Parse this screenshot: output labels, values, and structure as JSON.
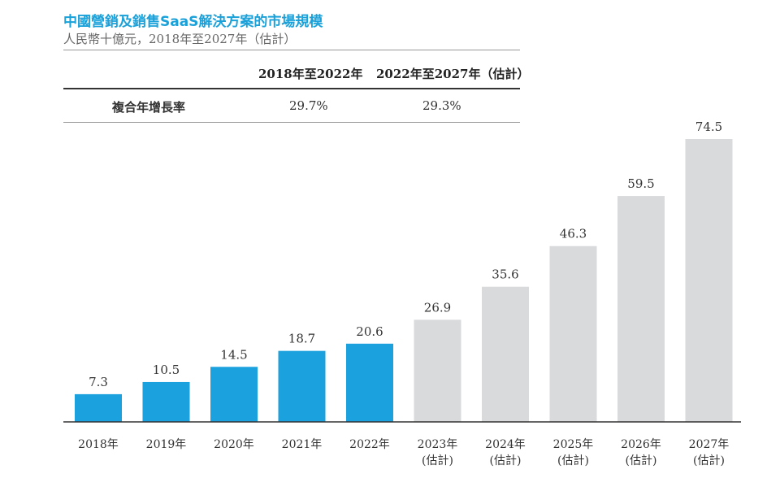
{
  "chart_data": {
    "type": "bar",
    "title": "中國營銷及銷售SaaS解決方案的市場規模",
    "subtitle": "人民幣十億元，2018年至2027年（估計）",
    "categories": [
      "2018年",
      "2019年",
      "2020年",
      "2021年",
      "2022年",
      "2023年\n(估計)",
      "2024年\n(估計)",
      "2025年\n(估計)",
      "2026年\n(估計)",
      "2027年\n(估計)"
    ],
    "values": [
      7.3,
      10.5,
      14.5,
      18.7,
      20.6,
      26.9,
      35.6,
      46.3,
      59.5,
      74.5
    ],
    "estimated": [
      false,
      false,
      false,
      false,
      false,
      true,
      true,
      true,
      true,
      true
    ],
    "colors": {
      "actual": "#1ba1de",
      "estimated": "#d9dadc"
    },
    "ylim": [
      0,
      74.5
    ],
    "grid": false,
    "cagr_table": {
      "headers": [
        "",
        "2018年至2022年",
        "2022年至2027年（估計）"
      ],
      "row_label": "複合年增長率",
      "values": [
        "29.7%",
        "29.3%"
      ]
    }
  }
}
